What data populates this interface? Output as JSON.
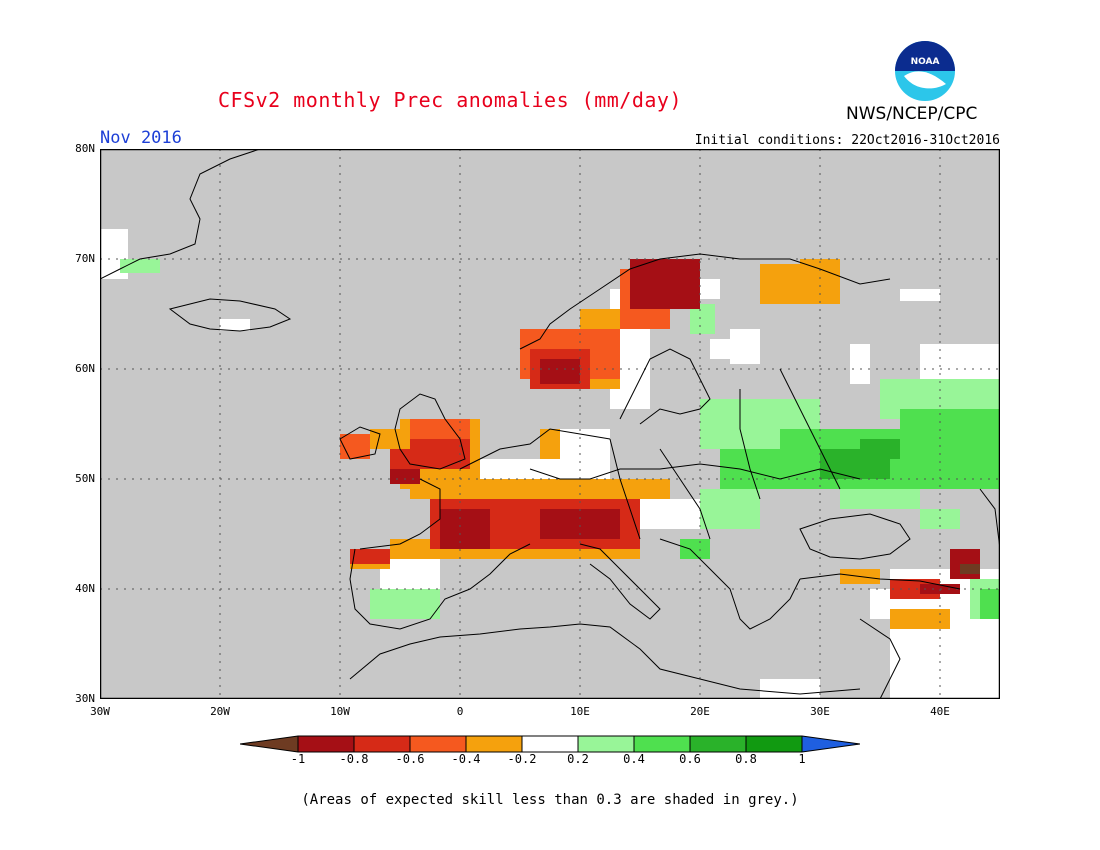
{
  "title": "CFSv2 monthly Prec anomalies (mm/day)",
  "agency": "NWS/NCEP/CPC",
  "logo_text": "NOAA",
  "month": "Nov 2016",
  "initial_conditions": "Initial conditions: 22Oct2016-31Oct2016",
  "lat_labels": [
    "80N",
    "70N",
    "60N",
    "50N",
    "40N",
    "30N"
  ],
  "lon_labels": [
    "30W",
    "20W",
    "10W",
    "0",
    "10E",
    "20E",
    "30E",
    "40E"
  ],
  "colorbar": {
    "ticks": [
      "-1",
      "-0.8",
      "-0.6",
      "-0.4",
      "-0.2",
      "0.2",
      "0.4",
      "0.6",
      "0.8",
      "1"
    ],
    "colors": [
      "#6e3b22",
      "#a50f15",
      "#d62a17",
      "#f5591f",
      "#f5a10d",
      "#ffffff",
      "#98f598",
      "#4fe04f",
      "#2ab22a",
      "#119a11",
      "#1f5fe0"
    ]
  },
  "footnote": "(Areas of expected skill less than 0.3 are shaded in grey.)",
  "colors": {
    "grey": "#c8c8c8",
    "title": "#e8001c",
    "month": "#1d3fd6"
  }
}
